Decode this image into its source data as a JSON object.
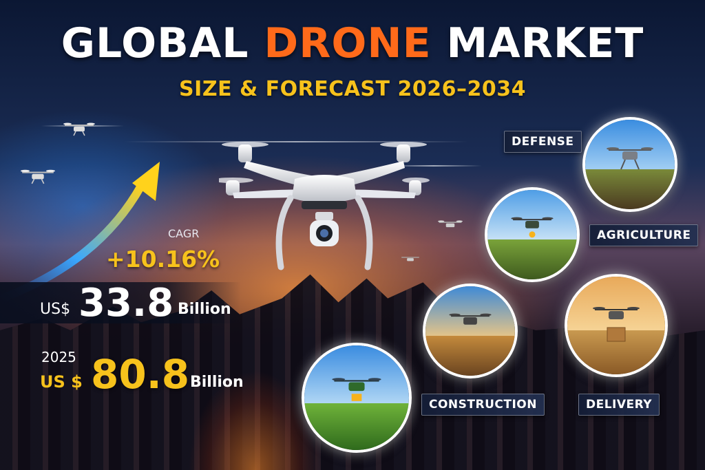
{
  "header": {
    "title_part1": "GLOBAL ",
    "title_highlight": "DRONE",
    "title_part2": " MARKET",
    "subtitle": "SIZE & FORECAST 2026–2034"
  },
  "stats": {
    "cagr_label": "CAGR",
    "cagr_value": "+10.16%",
    "value1_currency": "US$",
    "value1_number": "33.8",
    "value1_unit": "Billion",
    "year_label": "2025",
    "value2_currency": "US $",
    "value2_number": "80.8",
    "value2_unit": "Billion"
  },
  "segments": {
    "defense": "DEFENSE",
    "agriculture": "AGRICULTURE",
    "construction": "CONSTRUCTION",
    "delivery": "DELIVERY"
  },
  "colors": {
    "highlight_orange": "#ff6a1a",
    "accent_yellow": "#f7c21c",
    "background_navy": "#0b1733"
  },
  "icons": [
    "drone-icon",
    "growth-arrow-icon"
  ]
}
